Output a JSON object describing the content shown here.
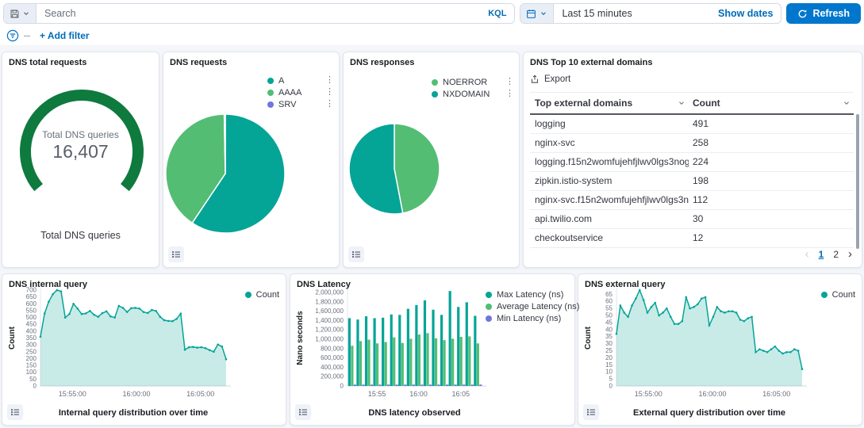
{
  "topbar": {
    "search_placeholder": "Search",
    "kql_label": "KQL",
    "time_range": "Last 15 minutes",
    "show_dates_label": "Show dates",
    "refresh_label": "Refresh"
  },
  "filter_bar": {
    "add_filter_label": "+ Add filter"
  },
  "colors": {
    "teal": "#04A497",
    "green": "#54BD74",
    "purple": "#6E77DC",
    "gauge_green": "#0E7A3E",
    "primary_blue": "#0077CC",
    "link_blue": "#006BB8",
    "text_dark": "#343741",
    "text_muted": "#69707D"
  },
  "panels": {
    "domains_table": {
      "title": "DNS Top 10 external domains",
      "export_label": "Export",
      "columns": [
        "Top external domains",
        "Count"
      ],
      "rows": [
        {
          "domain": "logging",
          "count": "491"
        },
        {
          "domain": "nginx-svc",
          "count": "258"
        },
        {
          "domain": "logging.f15n2womfujehfjlwv0lgs3nog....",
          "count": "224"
        },
        {
          "domain": "zipkin.istio-system",
          "count": "198"
        },
        {
          "domain": "nginx-svc.f15n2womfujehfjlwv0lgs3no...",
          "count": "112"
        },
        {
          "domain": "api.twilio.com",
          "count": "30"
        },
        {
          "domain": "checkoutservice",
          "count": "12"
        }
      ],
      "pagination": {
        "pages": [
          "1",
          "2"
        ],
        "active_page": "1"
      }
    }
  },
  "chart_data": [
    {
      "id": "gauge",
      "type": "gauge",
      "title": "DNS total requests",
      "center_label": "Total DNS queries",
      "value": 16407,
      "value_display": "16,407",
      "bottom_label": "Total DNS queries",
      "color": "#0E7A3E"
    },
    {
      "id": "requests",
      "type": "pie",
      "title": "DNS requests",
      "slices": [
        {
          "label": "A",
          "value_pct": 59.4,
          "color": "#04A497"
        },
        {
          "label": "AAAA",
          "value_pct": 40.3,
          "color": "#54BD74"
        },
        {
          "label": "SRV",
          "value_pct": 0.3,
          "color": "#6E77DC"
        }
      ]
    },
    {
      "id": "responses",
      "type": "pie",
      "title": "DNS responses",
      "slices": [
        {
          "label": "NOERROR",
          "value_pct": 47,
          "color": "#54BD74"
        },
        {
          "label": "NXDOMAIN",
          "value_pct": 53,
          "color": "#04A497"
        }
      ]
    },
    {
      "id": "internal",
      "type": "area",
      "title": "DNS internal query",
      "xlabel": "Internal query distribution over time",
      "ylabel": "Count",
      "ylim": [
        0,
        700
      ],
      "ytick_step": 50,
      "ytick_max": 700,
      "ytick_comma": false,
      "x_ticks": [
        {
          "label": "15:55:00",
          "f": 0.172
        },
        {
          "label": "16:00:00",
          "f": 0.517
        },
        {
          "label": "16:05:00",
          "f": 0.862
        }
      ],
      "series": [
        {
          "name": "Count",
          "color": "#04A497",
          "values": [
            360,
            530,
            615,
            670,
            700,
            690,
            500,
            525,
            600,
            565,
            525,
            530,
            548,
            520,
            505,
            532,
            545,
            508,
            500,
            585,
            570,
            540,
            568,
            570,
            565,
            540,
            533,
            555,
            548,
            505,
            480,
            475,
            473,
            490,
            528,
            265,
            283,
            285,
            280,
            283,
            276,
            262,
            250,
            303,
            288,
            195
          ]
        }
      ]
    },
    {
      "id": "latency",
      "type": "bar",
      "title": "DNS Latency",
      "xlabel": "DNS latency observed",
      "ylabel": "Nano seconds",
      "ylim": [
        0,
        2050000
      ],
      "ytick_step": 200000,
      "ytick_max": 2000000,
      "ytick_comma": true,
      "x_ticks": [
        {
          "label": "15:55",
          "f": 0.22
        },
        {
          "label": "16:00",
          "f": 0.53
        },
        {
          "label": "16:05",
          "f": 0.845
        }
      ],
      "series": [
        {
          "name": "Max Latency (ns)",
          "color": "#04A497",
          "values": [
            1450000,
            1420000,
            1490000,
            1450000,
            1460000,
            1530000,
            1520000,
            1650000,
            1730000,
            1830000,
            1630000,
            1520000,
            2030000,
            1690000,
            1790000,
            1500000
          ]
        },
        {
          "name": "Average Latency (ns)",
          "color": "#54BD74",
          "values": [
            860000,
            960000,
            990000,
            910000,
            940000,
            1040000,
            920000,
            1010000,
            1100000,
            1130000,
            1020000,
            980000,
            1010000,
            1050000,
            1060000,
            910000
          ]
        },
        {
          "name": "Min Latency (ns)",
          "color": "#6E77DC",
          "values": [
            30000,
            30000,
            30000,
            30000,
            30000,
            30000,
            30000,
            30000,
            30000,
            30000,
            30000,
            30000,
            30000,
            30000,
            30000,
            30000
          ]
        }
      ]
    },
    {
      "id": "external",
      "type": "area",
      "title": "DNS external query",
      "xlabel": "External query distribution over time",
      "ylabel": "Count",
      "ylim": [
        0,
        68
      ],
      "ytick_step": 5,
      "ytick_max": 65,
      "ytick_comma": false,
      "x_ticks": [
        {
          "label": "15:55:00",
          "f": 0.172
        },
        {
          "label": "16:00:00",
          "f": 0.517
        },
        {
          "label": "16:05:00",
          "f": 0.862
        }
      ],
      "series": [
        {
          "name": "Count",
          "color": "#04A497",
          "values": [
            37,
            57,
            52,
            49,
            57,
            62,
            68,
            61,
            52,
            56,
            59,
            50,
            52,
            55,
            49,
            44,
            44,
            46,
            63,
            55,
            56,
            58,
            62,
            63,
            43,
            49,
            56,
            53,
            52,
            53,
            53,
            52,
            47,
            46,
            48,
            49,
            24,
            26,
            25,
            24,
            26,
            28,
            25,
            23,
            24,
            24,
            26,
            25,
            12
          ]
        }
      ]
    }
  ]
}
